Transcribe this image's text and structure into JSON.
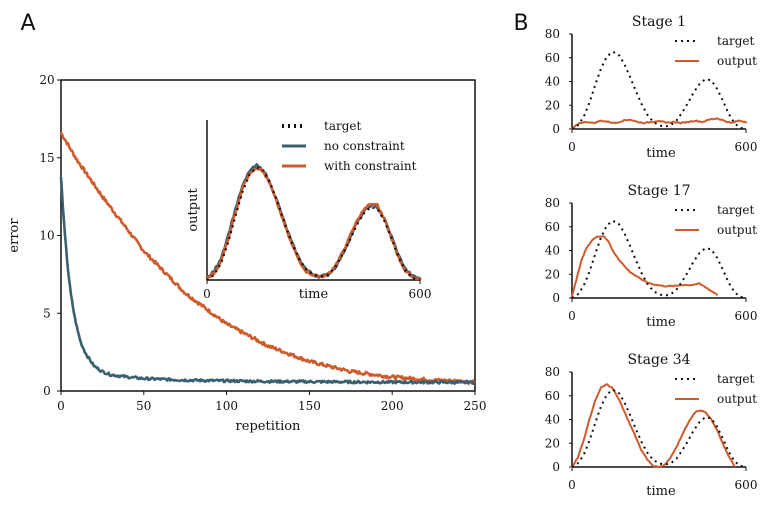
{
  "colors": {
    "target": "#111111",
    "no_constraint": "#3a6070",
    "with_constraint": "#cf5a2c",
    "output": "#cf5a2c",
    "axis": "#111111"
  },
  "chart_data": [
    {
      "id": "A-main",
      "panel_label": "A",
      "type": "line",
      "xlabel": "repetition",
      "ylabel": "error",
      "xlim": [
        0,
        250
      ],
      "ylim": [
        0,
        20
      ],
      "xticks": [
        0,
        50,
        100,
        150,
        200,
        250
      ],
      "yticks": [
        0,
        5,
        10,
        15,
        20
      ],
      "grid": false,
      "series": [
        {
          "name": "no constraint",
          "color": "#3a6070",
          "x": [
            0,
            2,
            4,
            6,
            8,
            10,
            12,
            15,
            20,
            25,
            30,
            40,
            50,
            75,
            100,
            125,
            150,
            175,
            200,
            225,
            250
          ],
          "y": [
            13.7,
            10.5,
            8.0,
            6.2,
            4.9,
            3.9,
            3.1,
            2.4,
            1.6,
            1.25,
            1.05,
            0.9,
            0.8,
            0.7,
            0.65,
            0.62,
            0.6,
            0.58,
            0.57,
            0.56,
            0.55
          ]
        },
        {
          "name": "with constraint",
          "color": "#cf5a2c",
          "x": [
            0,
            10,
            25,
            50,
            75,
            100,
            125,
            150,
            175,
            200,
            225,
            250
          ],
          "y": [
            16.6,
            14.8,
            12.5,
            9.0,
            6.3,
            4.3,
            2.9,
            1.9,
            1.25,
            0.9,
            0.7,
            0.6
          ]
        }
      ]
    },
    {
      "id": "A-inset",
      "type": "line",
      "xlabel": "time",
      "ylabel": "output",
      "xlim": [
        0,
        600
      ],
      "ylim": [
        0,
        75
      ],
      "xticks": [
        0,
        600
      ],
      "legend": [
        "target",
        "no constraint",
        "with constraint"
      ],
      "series": [
        {
          "name": "target",
          "x": [
            0,
            20,
            40,
            60,
            80,
            100,
            120,
            140,
            160,
            180,
            200,
            220,
            240,
            260,
            280,
            300,
            320,
            340,
            360,
            380,
            400,
            420,
            440,
            460,
            480,
            500,
            520,
            540,
            560,
            580,
            600
          ],
          "y": [
            0,
            3,
            10,
            22,
            37,
            51,
            61,
            65,
            63,
            55,
            44,
            32,
            21,
            12,
            6,
            3,
            2,
            3,
            7,
            14,
            22,
            31,
            38,
            42,
            41,
            34,
            24,
            13,
            5,
            1,
            0
          ]
        },
        {
          "name": "no constraint",
          "x": [
            0,
            20,
            40,
            60,
            80,
            100,
            120,
            140,
            160,
            180,
            200,
            220,
            240,
            260,
            280,
            300,
            320,
            340,
            360,
            380,
            400,
            420,
            440,
            460,
            480,
            500,
            520,
            540,
            560,
            580,
            600
          ],
          "y": [
            1,
            5,
            13,
            26,
            41,
            54,
            63,
            66,
            63,
            55,
            44,
            32,
            21,
            12,
            6,
            3,
            2,
            3,
            7,
            14,
            23,
            32,
            39,
            43,
            42,
            35,
            25,
            14,
            6,
            2,
            1
          ]
        },
        {
          "name": "with constraint",
          "x": [
            0,
            20,
            40,
            60,
            80,
            100,
            120,
            140,
            160,
            180,
            200,
            220,
            240,
            260,
            280,
            300,
            320,
            340,
            360,
            380,
            400,
            420,
            440,
            460,
            480,
            500,
            520,
            540,
            560,
            580,
            600
          ],
          "y": [
            1,
            4,
            11,
            24,
            39,
            53,
            62,
            65,
            62,
            54,
            43,
            31,
            20,
            11,
            5,
            3,
            2,
            3,
            8,
            15,
            24,
            33,
            40,
            44,
            43,
            35,
            24,
            13,
            5,
            1,
            0
          ]
        }
      ]
    },
    {
      "id": "B-stage1",
      "panel_label": "B",
      "type": "line",
      "title": "Stage 1",
      "xlabel": "time",
      "xlim": [
        0,
        600
      ],
      "ylim": [
        0,
        80
      ],
      "xticks": [
        0,
        600
      ],
      "yticks": [
        0,
        20,
        40,
        60,
        80
      ],
      "legend": [
        "target",
        "output"
      ],
      "series": [
        {
          "name": "target",
          "x": [
            0,
            20,
            40,
            60,
            80,
            100,
            120,
            140,
            160,
            180,
            200,
            220,
            240,
            260,
            280,
            300,
            320,
            340,
            360,
            380,
            400,
            420,
            440,
            460,
            480,
            500,
            520,
            540,
            560,
            580,
            600
          ],
          "y": [
            0,
            3,
            10,
            22,
            37,
            51,
            61,
            65,
            63,
            55,
            44,
            32,
            21,
            12,
            6,
            3,
            2,
            3,
            7,
            14,
            22,
            31,
            38,
            42,
            41,
            34,
            24,
            13,
            5,
            1,
            0
          ]
        },
        {
          "name": "output",
          "x": [
            0,
            25,
            50,
            75,
            100,
            125,
            150,
            175,
            200,
            225,
            250,
            275,
            300,
            325,
            350,
            375,
            400,
            425,
            450,
            475,
            500,
            525,
            550,
            575,
            600
          ],
          "y": [
            0,
            5,
            6,
            5,
            7,
            6,
            5,
            7,
            8,
            6,
            5,
            6,
            7,
            5,
            6,
            5,
            6,
            7,
            6,
            8,
            9,
            7,
            5,
            7,
            6
          ]
        }
      ]
    },
    {
      "id": "B-stage17",
      "type": "line",
      "title": "Stage 17",
      "xlabel": "time",
      "xlim": [
        0,
        600
      ],
      "ylim": [
        0,
        80
      ],
      "xticks": [
        0,
        600
      ],
      "yticks": [
        0,
        20,
        40,
        60,
        80
      ],
      "legend": [
        "target",
        "output"
      ],
      "series": [
        {
          "name": "target",
          "x": [
            0,
            20,
            40,
            60,
            80,
            100,
            120,
            140,
            160,
            180,
            200,
            220,
            240,
            260,
            280,
            300,
            320,
            340,
            360,
            380,
            400,
            420,
            440,
            460,
            480,
            500,
            520,
            540,
            560,
            580,
            600
          ],
          "y": [
            0,
            3,
            10,
            22,
            37,
            51,
            61,
            65,
            63,
            55,
            44,
            32,
            21,
            12,
            6,
            3,
            2,
            3,
            7,
            14,
            22,
            31,
            38,
            42,
            41,
            34,
            24,
            13,
            5,
            1,
            0
          ]
        },
        {
          "name": "output",
          "x": [
            0,
            15,
            30,
            50,
            70,
            90,
            110,
            125,
            140,
            160,
            180,
            200,
            230,
            260,
            290,
            320,
            350,
            380,
            410,
            440,
            460,
            480,
            500
          ],
          "y": [
            2,
            15,
            30,
            42,
            49,
            52,
            52,
            48,
            40,
            33,
            27,
            22,
            17,
            13,
            11,
            10,
            10,
            11,
            11,
            12,
            9,
            6,
            3
          ]
        }
      ]
    },
    {
      "id": "B-stage34",
      "type": "line",
      "title": "Stage 34",
      "xlabel": "time",
      "xlim": [
        0,
        600
      ],
      "ylim": [
        0,
        80
      ],
      "xticks": [
        0,
        600
      ],
      "yticks": [
        0,
        20,
        40,
        60,
        80
      ],
      "legend": [
        "target",
        "output"
      ],
      "series": [
        {
          "name": "target",
          "x": [
            0,
            20,
            40,
            60,
            80,
            100,
            120,
            140,
            160,
            180,
            200,
            220,
            240,
            260,
            280,
            300,
            320,
            340,
            360,
            380,
            400,
            420,
            440,
            460,
            480,
            500,
            520,
            540,
            560,
            580,
            600
          ],
          "y": [
            0,
            3,
            10,
            22,
            37,
            51,
            61,
            65,
            63,
            55,
            44,
            32,
            21,
            12,
            6,
            3,
            2,
            3,
            7,
            14,
            22,
            31,
            38,
            42,
            41,
            34,
            24,
            13,
            5,
            1,
            0
          ]
        },
        {
          "name": "output",
          "x": [
            0,
            20,
            40,
            60,
            80,
            100,
            120,
            140,
            160,
            180,
            200,
            220,
            240,
            260,
            280,
            300,
            320,
            340,
            360,
            380,
            400,
            420,
            440,
            460,
            480,
            500,
            520,
            540,
            560
          ],
          "y": [
            0,
            8,
            22,
            40,
            56,
            67,
            70,
            66,
            58,
            47,
            36,
            25,
            14,
            6,
            1,
            0,
            2,
            8,
            17,
            27,
            37,
            45,
            48,
            46,
            40,
            31,
            20,
            9,
            1
          ]
        }
      ]
    }
  ]
}
